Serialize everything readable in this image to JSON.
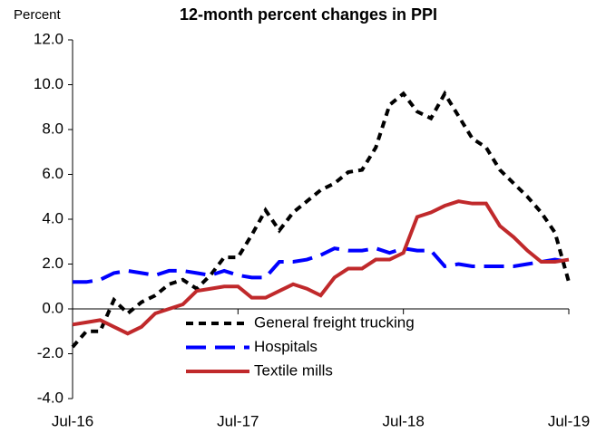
{
  "chart_data": {
    "type": "line",
    "title": "12-month percent changes in PPI",
    "y_label": "Percent",
    "categories": [
      "Jul-16",
      null,
      null,
      null,
      null,
      null,
      null,
      null,
      null,
      null,
      null,
      null,
      "Jul-17",
      null,
      null,
      null,
      null,
      null,
      null,
      null,
      null,
      null,
      null,
      null,
      "Jul-18",
      null,
      null,
      null,
      null,
      null,
      null,
      null,
      null,
      null,
      null,
      null,
      "Jul-19"
    ],
    "series": [
      {
        "name": "General freight trucking",
        "color": "#000000",
        "dash": "8,6",
        "values": [
          -1.7,
          -1.0,
          -1.0,
          0.4,
          -0.2,
          0.3,
          0.6,
          1.1,
          1.3,
          0.9,
          1.5,
          2.3,
          2.3,
          3.3,
          4.4,
          3.5,
          4.3,
          4.8,
          5.3,
          5.6,
          6.1,
          6.2,
          7.2,
          9.1,
          9.6,
          8.8,
          8.5,
          9.6,
          8.6,
          7.6,
          7.2,
          6.2,
          5.6,
          5.0,
          4.3,
          3.4,
          1.2
        ]
      },
      {
        "name": "Hospitals",
        "color": "#0000ff",
        "dash": "22,10",
        "values": [
          1.2,
          1.2,
          1.3,
          1.6,
          1.7,
          1.6,
          1.5,
          1.7,
          1.7,
          1.6,
          1.5,
          1.7,
          1.5,
          1.4,
          1.4,
          2.1,
          2.1,
          2.2,
          2.4,
          2.7,
          2.6,
          2.6,
          2.7,
          2.5,
          2.7,
          2.6,
          2.6,
          1.9,
          2.0,
          1.9,
          1.9,
          1.9,
          1.9,
          2.0,
          2.1,
          2.2,
          2.1
        ]
      },
      {
        "name": "Textile mills",
        "color": "#c0292b",
        "dash": "none",
        "values": [
          -0.7,
          -0.6,
          -0.5,
          -0.8,
          -1.1,
          -0.8,
          -0.2,
          0.0,
          0.2,
          0.8,
          0.9,
          1.0,
          1.0,
          0.5,
          0.5,
          0.8,
          1.1,
          0.9,
          0.6,
          1.4,
          1.8,
          1.8,
          2.2,
          2.2,
          2.5,
          4.1,
          4.3,
          4.6,
          4.8,
          4.7,
          4.7,
          3.7,
          3.2,
          2.6,
          2.1,
          2.1,
          2.2
        ]
      }
    ],
    "ylim": [
      -4,
      12
    ],
    "yticks": [
      {
        "value": -4,
        "label": "-4.0"
      },
      {
        "value": -2,
        "label": "-2.0"
      },
      {
        "value": 0,
        "label": "0.0"
      },
      {
        "value": 2,
        "label": "2.0"
      },
      {
        "value": 4,
        "label": "4.0"
      },
      {
        "value": 6,
        "label": "6.0"
      },
      {
        "value": 8,
        "label": "8.0"
      },
      {
        "value": 10,
        "label": "10.0"
      },
      {
        "value": 12,
        "label": "12.0"
      }
    ],
    "grid": false,
    "legend": "lower center"
  }
}
